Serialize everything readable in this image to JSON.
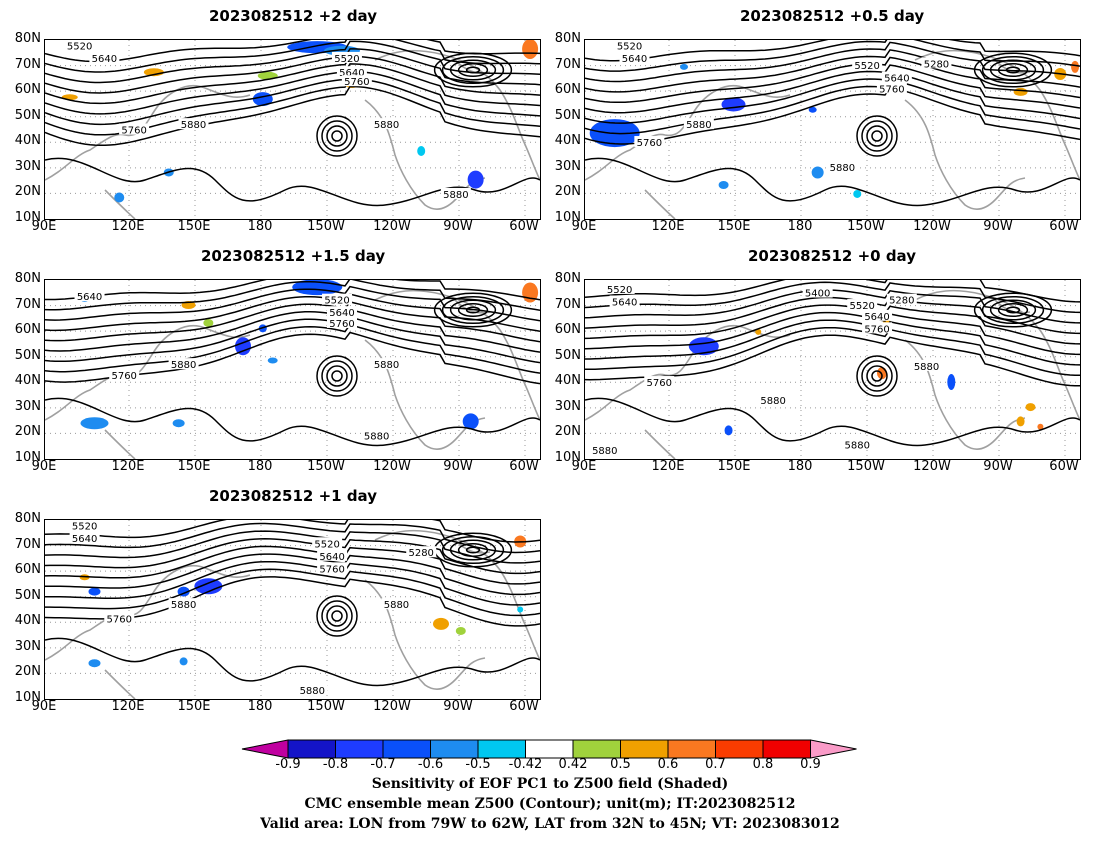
{
  "panels": [
    {
      "title": "2023082512 +2 day",
      "contour_labels": [
        "5520",
        "5640",
        "5520",
        "5640",
        "5760",
        "5760",
        "5880",
        "5880",
        "5880"
      ]
    },
    {
      "title": "2023082512 +0.5 day",
      "contour_labels": [
        "5520",
        "5640",
        "5280",
        "5520",
        "5640",
        "5760",
        "5880",
        "5760",
        "5880"
      ]
    },
    {
      "title": "2023082512 +1.5 day",
      "contour_labels": [
        "5640",
        "5520",
        "5640",
        "5760",
        "5760",
        "5880",
        "5880",
        "5880"
      ]
    },
    {
      "title": "2023082512 +0 day",
      "contour_labels": [
        "5520",
        "5640",
        "5400",
        "5280",
        "5520",
        "5640",
        "5760",
        "5760",
        "5880",
        "5880",
        "5880",
        "5880"
      ]
    },
    {
      "title": "2023082512 +1 day",
      "contour_labels": [
        "5520",
        "5640",
        "5280",
        "5520",
        "5640",
        "5760",
        "5880",
        "5880",
        "5760",
        "5880"
      ]
    }
  ],
  "lat_labels": [
    "80N",
    "70N",
    "60N",
    "50N",
    "40N",
    "30N",
    "20N",
    "10N"
  ],
  "lon_labels": [
    "90E",
    "120E",
    "150E",
    "180",
    "150W",
    "120W",
    "90W",
    "60W"
  ],
  "colorbar": {
    "ticks": [
      "-0.9",
      "-0.8",
      "-0.7",
      "-0.6",
      "-0.5",
      "-0.42",
      "0.42",
      "0.5",
      "0.6",
      "0.7",
      "0.8",
      "0.9"
    ],
    "colors": [
      "#c000a0",
      "#1414c8",
      "#1e3cff",
      "#0a50fa",
      "#1e8cf0",
      "#00c8f0",
      "#ffffff",
      "#a0d23c",
      "#f0a000",
      "#fa7820",
      "#fa3c00",
      "#f00000",
      "#fa9bc8"
    ]
  },
  "footer": {
    "line1": "Sensitivity of EOF PC1 to Z500 field (Shaded)",
    "line2": "CMC ensemble mean Z500 (Contour); unit(m); IT:2023082512",
    "line3": "Valid area: LON from 79W to 62W, LAT from 32N to 45N; VT: 2023083012"
  }
}
